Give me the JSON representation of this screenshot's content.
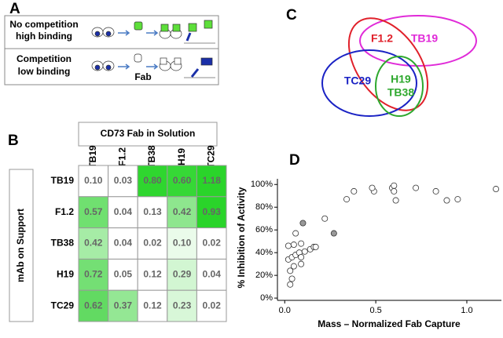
{
  "panel_a": {
    "label": "A",
    "top_line1": "No competition",
    "top_line2": "high binding",
    "bottom_line1": "Competition",
    "bottom_line2": "low binding",
    "fab": "Fab"
  },
  "panel_b": {
    "label": "B",
    "column_title": "CD73 Fab in Solution",
    "row_title": "mAb on Support",
    "columns": [
      "TB19",
      "F1.2",
      "TB38",
      "H19",
      "TC29"
    ],
    "rows": [
      "TB19",
      "F1.2",
      "TB38",
      "H19",
      "TC29"
    ],
    "cells": [
      [
        "0.10",
        "0.03",
        "0.80",
        "0.60",
        "1.18"
      ],
      [
        "0.57",
        "0.04",
        "0.13",
        "0.42",
        "0.93"
      ],
      [
        "0.42",
        "0.04",
        "0.02",
        "0.10",
        "0.02"
      ],
      [
        "0.72",
        "0.05",
        "0.12",
        "0.29",
        "0.04"
      ],
      [
        "0.62",
        "0.37",
        "0.12",
        "0.23",
        "0.02"
      ]
    ],
    "cell_colors": [
      [
        "#ffffff",
        "#ffffff",
        "#2fd62f",
        "#36d836",
        "#2ad42a"
      ],
      [
        "#70e070",
        "#ffffff",
        "#ffffff",
        "#8ee68e",
        "#2ad42a"
      ],
      [
        "#a6eca6",
        "#ffffff",
        "#ffffff",
        "#eafbea",
        "#ffffff"
      ],
      [
        "#74df74",
        "#ffffff",
        "#ffffff",
        "#d2f6d2",
        "#ffffff"
      ],
      [
        "#62da62",
        "#94e794",
        "#ffffff",
        "#d8f7d8",
        "#ffffff"
      ]
    ]
  },
  "panel_c": {
    "label": "C",
    "f12": "F1.2",
    "tb19": "TB19",
    "tc29": "TC29",
    "h19": "H19",
    "tb38": "TB38"
  },
  "chart_data": {
    "type": "scatter",
    "panel_label": "D",
    "y_label": "% Inhibition of Activity",
    "x_label": "Mass – Normalized Fab Capture",
    "xlim": [
      -0.04,
      1.19
    ],
    "ylim": [
      -2,
      105
    ],
    "xticks": [
      {
        "value": 0,
        "label": "0.0"
      },
      0.5,
      {
        "value": 1,
        "label": "1.0"
      }
    ],
    "yticks": [
      {
        "value": 0,
        "label": "0%"
      },
      {
        "value": 20,
        "label": "20%"
      },
      {
        "value": 40,
        "label": "40%"
      },
      {
        "value": 60,
        "label": "60%"
      },
      {
        "value": 80,
        "label": "80%"
      },
      {
        "value": 100,
        "label": "100%"
      }
    ],
    "series": [
      {
        "color": "#ffffff",
        "x": [
          0.03,
          0.04,
          0.03,
          0.02,
          0.04,
          0.06,
          0.08,
          0.05,
          0.02,
          0.05,
          0.06,
          0.09,
          0.09,
          0.11,
          0.14,
          0.16,
          0.17,
          0.09,
          0.22,
          0.34,
          0.38,
          0.49,
          0.59,
          0.6,
          0.6,
          0.61,
          0.72,
          0.83,
          0.89,
          0.95,
          0.48,
          1.16
        ],
        "values": [
          24,
          17,
          12,
          34,
          36,
          38,
          40,
          28,
          46,
          47,
          57,
          30,
          36,
          41,
          43,
          45,
          45,
          48,
          70,
          87,
          94,
          94,
          97,
          99,
          94,
          86,
          97,
          94,
          86,
          87,
          97,
          96
        ]
      },
      {
        "color": "#999999",
        "x": [
          0.1,
          0.27
        ],
        "values": [
          66,
          57
        ]
      }
    ]
  }
}
